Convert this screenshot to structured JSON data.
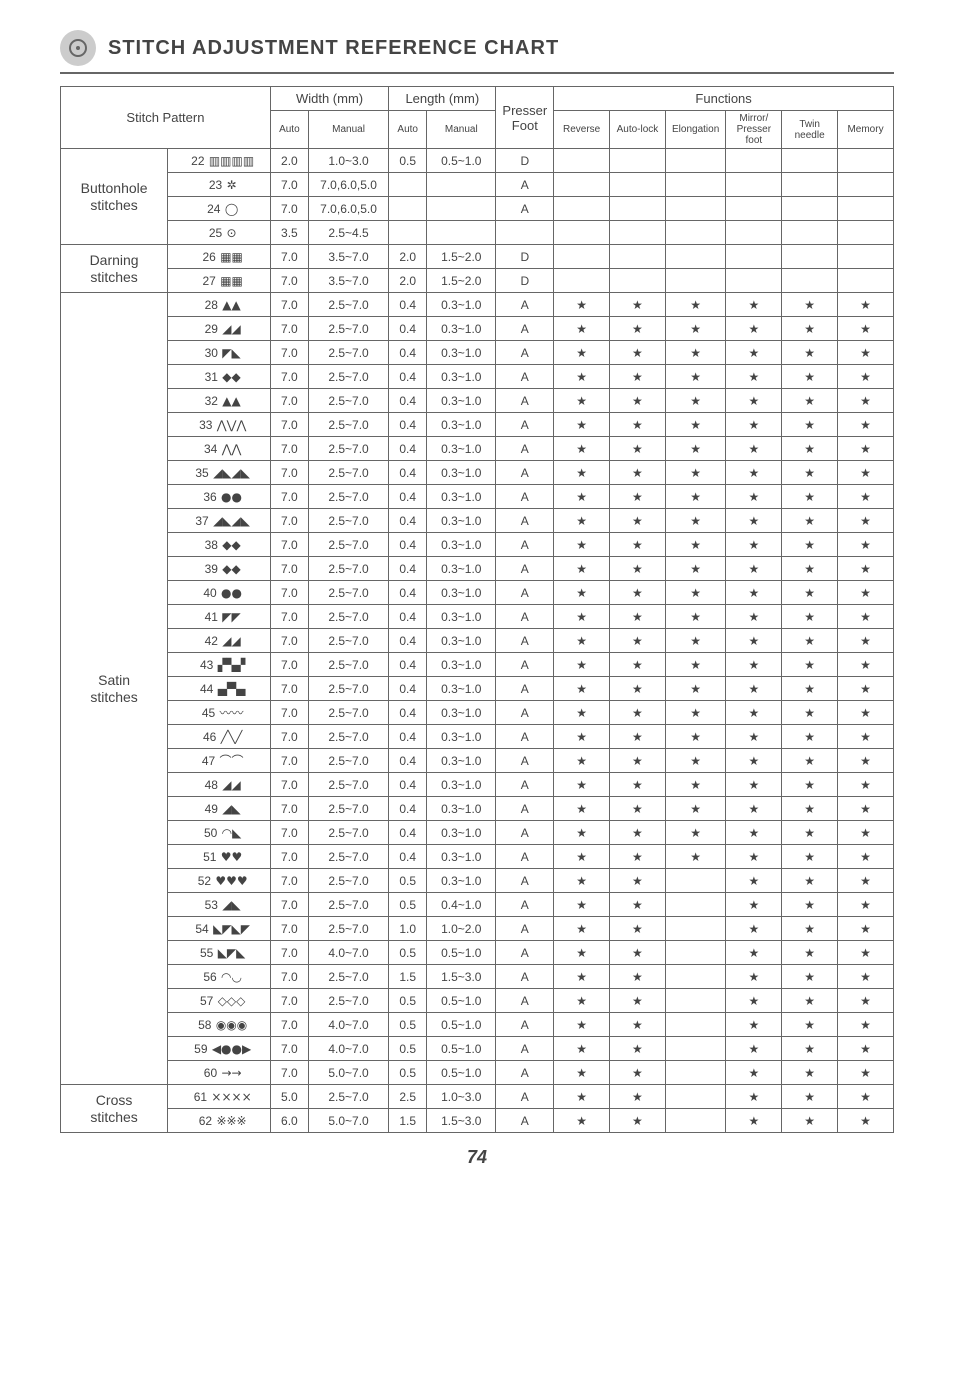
{
  "page_title": "STITCH ADJUSTMENT REFERENCE CHART",
  "page_number": "74",
  "headers": {
    "stitch_pattern": "Stitch Pattern",
    "width": "Width (mm)",
    "length": "Length (mm)",
    "presser_foot": "Presser Foot",
    "functions": "Functions",
    "auto": "Auto",
    "manual": "Manual",
    "reverse": "Reverse",
    "auto_lock": "Auto-lock",
    "elongation": "Elongation",
    "mirror": "Mirror/ Presser foot",
    "twin": "Twin needle",
    "memory": "Memory"
  },
  "groups": [
    {
      "label_top": "Buttonhole",
      "label_bottom": "stitches",
      "rows": [
        {
          "num": "22",
          "glyph": "▥▥▥▥",
          "wa": "2.0",
          "wm": "1.0~3.0",
          "la": "0.5",
          "lm": "0.5~1.0",
          "foot": "D",
          "fn": [
            "",
            "",
            "",
            "",
            "",
            ""
          ]
        },
        {
          "num": "23",
          "glyph": "✲",
          "wa": "7.0",
          "wm": "7.0,6.0,5.0",
          "la": "",
          "lm": "",
          "foot": "A",
          "fn": [
            "",
            "",
            "",
            "",
            "",
            ""
          ]
        },
        {
          "num": "24",
          "glyph": "◯",
          "wa": "7.0",
          "wm": "7.0,6.0,5.0",
          "la": "",
          "lm": "",
          "foot": "A",
          "fn": [
            "",
            "",
            "",
            "",
            "",
            ""
          ]
        },
        {
          "num": "25",
          "glyph": "⊙",
          "wa": "3.5",
          "wm": "2.5~4.5",
          "la": "",
          "lm": "",
          "foot": "",
          "fn": [
            "",
            "",
            "",
            "",
            "",
            ""
          ]
        }
      ]
    },
    {
      "label_top": "Darning",
      "label_bottom": "stitches",
      "rows": [
        {
          "num": "26",
          "glyph": "▦▦",
          "wa": "7.0",
          "wm": "3.5~7.0",
          "la": "2.0",
          "lm": "1.5~2.0",
          "foot": "D",
          "fn": [
            "",
            "",
            "",
            "",
            "",
            ""
          ]
        },
        {
          "num": "27",
          "glyph": "▦▦",
          "wa": "7.0",
          "wm": "3.5~7.0",
          "la": "2.0",
          "lm": "1.5~2.0",
          "foot": "D",
          "fn": [
            "",
            "",
            "",
            "",
            "",
            ""
          ]
        }
      ]
    },
    {
      "label_top": "Satin",
      "label_bottom": "stitches",
      "rows": [
        {
          "num": "28",
          "glyph": "▲▲",
          "wa": "7.0",
          "wm": "2.5~7.0",
          "la": "0.4",
          "lm": "0.3~1.0",
          "foot": "A",
          "fn": [
            "★",
            "★",
            "★",
            "★",
            "★",
            "★"
          ]
        },
        {
          "num": "29",
          "glyph": "◢◢",
          "wa": "7.0",
          "wm": "2.5~7.0",
          "la": "0.4",
          "lm": "0.3~1.0",
          "foot": "A",
          "fn": [
            "★",
            "★",
            "★",
            "★",
            "★",
            "★"
          ]
        },
        {
          "num": "30",
          "glyph": "◤◣",
          "wa": "7.0",
          "wm": "2.5~7.0",
          "la": "0.4",
          "lm": "0.3~1.0",
          "foot": "A",
          "fn": [
            "★",
            "★",
            "★",
            "★",
            "★",
            "★"
          ]
        },
        {
          "num": "31",
          "glyph": "◆◆",
          "wa": "7.0",
          "wm": "2.5~7.0",
          "la": "0.4",
          "lm": "0.3~1.0",
          "foot": "A",
          "fn": [
            "★",
            "★",
            "★",
            "★",
            "★",
            "★"
          ]
        },
        {
          "num": "32",
          "glyph": "▲▲",
          "wa": "7.0",
          "wm": "2.5~7.0",
          "la": "0.4",
          "lm": "0.3~1.0",
          "foot": "A",
          "fn": [
            "★",
            "★",
            "★",
            "★",
            "★",
            "★"
          ]
        },
        {
          "num": "33",
          "glyph": "⋀⋁⋀",
          "wa": "7.0",
          "wm": "2.5~7.0",
          "la": "0.4",
          "lm": "0.3~1.0",
          "foot": "A",
          "fn": [
            "★",
            "★",
            "★",
            "★",
            "★",
            "★"
          ]
        },
        {
          "num": "34",
          "glyph": "⋀⋀",
          "wa": "7.0",
          "wm": "2.5~7.0",
          "la": "0.4",
          "lm": "0.3~1.0",
          "foot": "A",
          "fn": [
            "★",
            "★",
            "★",
            "★",
            "★",
            "★"
          ]
        },
        {
          "num": "35",
          "glyph": "◢◣◢◣",
          "wa": "7.0",
          "wm": "2.5~7.0",
          "la": "0.4",
          "lm": "0.3~1.0",
          "foot": "A",
          "fn": [
            "★",
            "★",
            "★",
            "★",
            "★",
            "★"
          ]
        },
        {
          "num": "36",
          "glyph": "●●",
          "wa": "7.0",
          "wm": "2.5~7.0",
          "la": "0.4",
          "lm": "0.3~1.0",
          "foot": "A",
          "fn": [
            "★",
            "★",
            "★",
            "★",
            "★",
            "★"
          ]
        },
        {
          "num": "37",
          "glyph": "◢◣◢◣",
          "wa": "7.0",
          "wm": "2.5~7.0",
          "la": "0.4",
          "lm": "0.3~1.0",
          "foot": "A",
          "fn": [
            "★",
            "★",
            "★",
            "★",
            "★",
            "★"
          ]
        },
        {
          "num": "38",
          "glyph": "◆◆",
          "wa": "7.0",
          "wm": "2.5~7.0",
          "la": "0.4",
          "lm": "0.3~1.0",
          "foot": "A",
          "fn": [
            "★",
            "★",
            "★",
            "★",
            "★",
            "★"
          ]
        },
        {
          "num": "39",
          "glyph": "◆◆",
          "wa": "7.0",
          "wm": "2.5~7.0",
          "la": "0.4",
          "lm": "0.3~1.0",
          "foot": "A",
          "fn": [
            "★",
            "★",
            "★",
            "★",
            "★",
            "★"
          ]
        },
        {
          "num": "40",
          "glyph": "●●",
          "wa": "7.0",
          "wm": "2.5~7.0",
          "la": "0.4",
          "lm": "0.3~1.0",
          "foot": "A",
          "fn": [
            "★",
            "★",
            "★",
            "★",
            "★",
            "★"
          ]
        },
        {
          "num": "41",
          "glyph": "◤◤",
          "wa": "7.0",
          "wm": "2.5~7.0",
          "la": "0.4",
          "lm": "0.3~1.0",
          "foot": "A",
          "fn": [
            "★",
            "★",
            "★",
            "★",
            "★",
            "★"
          ]
        },
        {
          "num": "42",
          "glyph": "◢◢",
          "wa": "7.0",
          "wm": "2.5~7.0",
          "la": "0.4",
          "lm": "0.3~1.0",
          "foot": "A",
          "fn": [
            "★",
            "★",
            "★",
            "★",
            "★",
            "★"
          ]
        },
        {
          "num": "43",
          "glyph": "▞▚▞",
          "wa": "7.0",
          "wm": "2.5~7.0",
          "la": "0.4",
          "lm": "0.3~1.0",
          "foot": "A",
          "fn": [
            "★",
            "★",
            "★",
            "★",
            "★",
            "★"
          ]
        },
        {
          "num": "44",
          "glyph": "▄▀▄",
          "wa": "7.0",
          "wm": "2.5~7.0",
          "la": "0.4",
          "lm": "0.3~1.0",
          "foot": "A",
          "fn": [
            "★",
            "★",
            "★",
            "★",
            "★",
            "★"
          ]
        },
        {
          "num": "45",
          "glyph": "〰〰",
          "wa": "7.0",
          "wm": "2.5~7.0",
          "la": "0.4",
          "lm": "0.3~1.0",
          "foot": "A",
          "fn": [
            "★",
            "★",
            "★",
            "★",
            "★",
            "★"
          ]
        },
        {
          "num": "46",
          "glyph": "╱╲╱",
          "wa": "7.0",
          "wm": "2.5~7.0",
          "la": "0.4",
          "lm": "0.3~1.0",
          "foot": "A",
          "fn": [
            "★",
            "★",
            "★",
            "★",
            "★",
            "★"
          ]
        },
        {
          "num": "47",
          "glyph": "⌒⌒",
          "wa": "7.0",
          "wm": "2.5~7.0",
          "la": "0.4",
          "lm": "0.3~1.0",
          "foot": "A",
          "fn": [
            "★",
            "★",
            "★",
            "★",
            "★",
            "★"
          ]
        },
        {
          "num": "48",
          "glyph": "◢◢",
          "wa": "7.0",
          "wm": "2.5~7.0",
          "la": "0.4",
          "lm": "0.3~1.0",
          "foot": "A",
          "fn": [
            "★",
            "★",
            "★",
            "★",
            "★",
            "★"
          ]
        },
        {
          "num": "49",
          "glyph": "◢◣",
          "wa": "7.0",
          "wm": "2.5~7.0",
          "la": "0.4",
          "lm": "0.3~1.0",
          "foot": "A",
          "fn": [
            "★",
            "★",
            "★",
            "★",
            "★",
            "★"
          ]
        },
        {
          "num": "50",
          "glyph": "◠◣",
          "wa": "7.0",
          "wm": "2.5~7.0",
          "la": "0.4",
          "lm": "0.3~1.0",
          "foot": "A",
          "fn": [
            "★",
            "★",
            "★",
            "★",
            "★",
            "★"
          ]
        },
        {
          "num": "51",
          "glyph": "♥♥",
          "wa": "7.0",
          "wm": "2.5~7.0",
          "la": "0.4",
          "lm": "0.3~1.0",
          "foot": "A",
          "fn": [
            "★",
            "★",
            "★",
            "★",
            "★",
            "★"
          ]
        },
        {
          "num": "52",
          "glyph": "♥♥♥",
          "wa": "7.0",
          "wm": "2.5~7.0",
          "la": "0.5",
          "lm": "0.3~1.0",
          "foot": "A",
          "fn": [
            "★",
            "★",
            "",
            "★",
            "★",
            "★"
          ]
        },
        {
          "num": "53",
          "glyph": "◢◣",
          "wa": "7.0",
          "wm": "2.5~7.0",
          "la": "0.5",
          "lm": "0.4~1.0",
          "foot": "A",
          "fn": [
            "★",
            "★",
            "",
            "★",
            "★",
            "★"
          ]
        },
        {
          "num": "54",
          "glyph": "◣◤◣◤",
          "wa": "7.0",
          "wm": "2.5~7.0",
          "la": "1.0",
          "lm": "1.0~2.0",
          "foot": "A",
          "fn": [
            "★",
            "★",
            "",
            "★",
            "★",
            "★"
          ]
        },
        {
          "num": "55",
          "glyph": "◣◤◣",
          "wa": "7.0",
          "wm": "4.0~7.0",
          "la": "0.5",
          "lm": "0.5~1.0",
          "foot": "A",
          "fn": [
            "★",
            "★",
            "",
            "★",
            "★",
            "★"
          ]
        },
        {
          "num": "56",
          "glyph": "◠◡",
          "wa": "7.0",
          "wm": "2.5~7.0",
          "la": "1.5",
          "lm": "1.5~3.0",
          "foot": "A",
          "fn": [
            "★",
            "★",
            "",
            "★",
            "★",
            "★"
          ]
        },
        {
          "num": "57",
          "glyph": "◇◇◇",
          "wa": "7.0",
          "wm": "2.5~7.0",
          "la": "0.5",
          "lm": "0.5~1.0",
          "foot": "A",
          "fn": [
            "★",
            "★",
            "",
            "★",
            "★",
            "★"
          ]
        },
        {
          "num": "58",
          "glyph": "◉◉◉",
          "wa": "7.0",
          "wm": "4.0~7.0",
          "la": "0.5",
          "lm": "0.5~1.0",
          "foot": "A",
          "fn": [
            "★",
            "★",
            "",
            "★",
            "★",
            "★"
          ]
        },
        {
          "num": "59",
          "glyph": "◀●●▶",
          "wa": "7.0",
          "wm": "4.0~7.0",
          "la": "0.5",
          "lm": "0.5~1.0",
          "foot": "A",
          "fn": [
            "★",
            "★",
            "",
            "★",
            "★",
            "★"
          ]
        },
        {
          "num": "60",
          "glyph": "→→",
          "wa": "7.0",
          "wm": "5.0~7.0",
          "la": "0.5",
          "lm": "0.5~1.0",
          "foot": "A",
          "fn": [
            "★",
            "★",
            "",
            "★",
            "★",
            "★"
          ]
        }
      ]
    },
    {
      "label_top": "Cross",
      "label_bottom": "stitches",
      "rows": [
        {
          "num": "61",
          "glyph": "××××",
          "wa": "5.0",
          "wm": "2.5~7.0",
          "la": "2.5",
          "lm": "1.0~3.0",
          "foot": "A",
          "fn": [
            "★",
            "★",
            "",
            "★",
            "★",
            "★"
          ]
        },
        {
          "num": "62",
          "glyph": "※※※",
          "wa": "6.0",
          "wm": "5.0~7.0",
          "la": "1.5",
          "lm": "1.5~3.0",
          "foot": "A",
          "fn": [
            "★",
            "★",
            "",
            "★",
            "★",
            "★"
          ]
        }
      ]
    }
  ]
}
